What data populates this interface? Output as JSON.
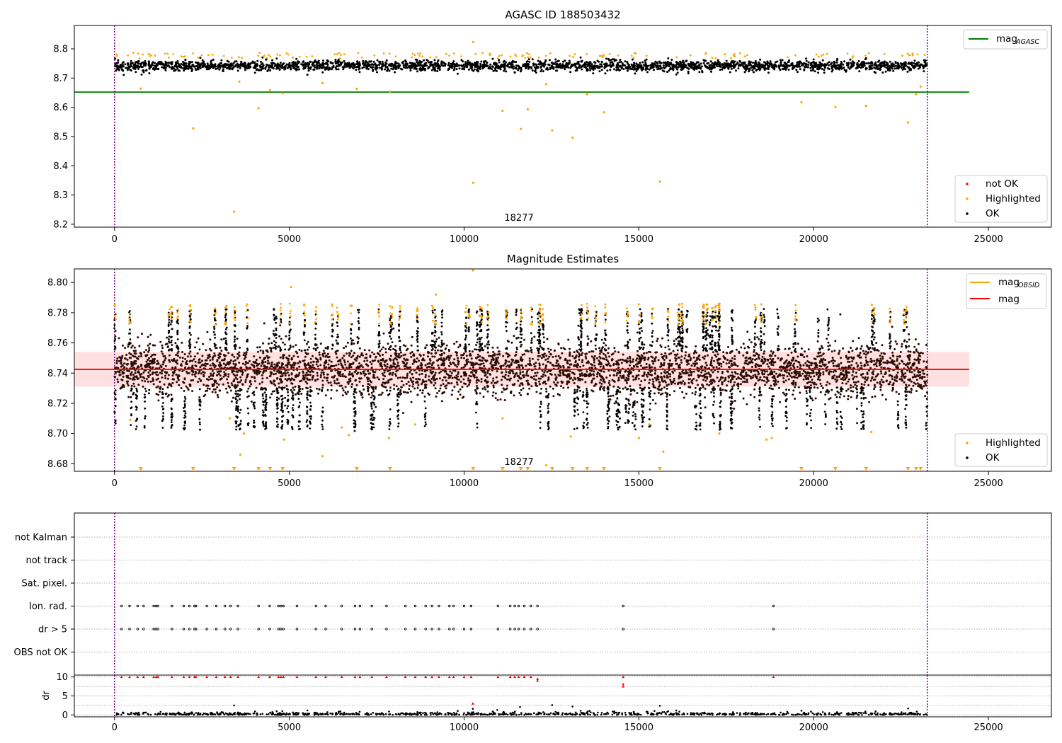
{
  "chart_data": [
    {
      "type": "scatter",
      "title": "AGASC ID 188503432",
      "xlim": [
        -1150,
        26800
      ],
      "ylim": [
        8.19,
        8.88
      ],
      "xticks": [
        "0",
        "5000",
        "10000",
        "15000",
        "20000",
        "25000"
      ],
      "yticks": [
        "8.2",
        "8.3",
        "8.4",
        "8.5",
        "8.6",
        "8.7",
        "8.8"
      ],
      "vlines": [
        0,
        23250
      ],
      "annotation": {
        "text": "18277",
        "x": 11700,
        "y": 8.205
      },
      "lines": [
        {
          "name": "mag",
          "name_sub": "AGASC",
          "y": 8.652,
          "x_range": [
            -1150,
            24450
          ],
          "color": "#008000"
        }
      ],
      "band": {
        "center": 8.742,
        "half_width": 0.012,
        "x_range": [
          0,
          23250
        ]
      },
      "legends": [
        {
          "position": "top-right",
          "entries": [
            {
              "label": "mag",
              "sub": "AGASC",
              "kind": "line",
              "color": "#008000"
            }
          ]
        },
        {
          "position": "bottom-right",
          "entries": [
            {
              "label": "not OK",
              "kind": "dot",
              "color": "#ff0000"
            },
            {
              "label": "Highlighted",
              "kind": "dot",
              "color": "#ffa500"
            },
            {
              "label": "OK",
              "kind": "dot",
              "color": "#000000"
            }
          ]
        }
      ],
      "series": [
        {
          "name": "Highlighted",
          "color": "#ffa500",
          "points": [
            [
              750,
              8.664
            ],
            [
              2250,
              8.528
            ],
            [
              3420,
              8.243
            ],
            [
              3570,
              8.688
            ],
            [
              4120,
              8.597
            ],
            [
              4450,
              8.659
            ],
            [
              4810,
              8.648
            ],
            [
              5950,
              8.683
            ],
            [
              6930,
              8.663
            ],
            [
              7880,
              8.654
            ],
            [
              10260,
              8.823
            ],
            [
              10260,
              8.342
            ],
            [
              11100,
              8.588
            ],
            [
              11620,
              8.526
            ],
            [
              11820,
              8.593
            ],
            [
              12350,
              8.679
            ],
            [
              12520,
              8.521
            ],
            [
              13100,
              8.496
            ],
            [
              13520,
              8.645
            ],
            [
              14000,
              8.583
            ],
            [
              15600,
              8.346
            ],
            [
              19650,
              8.617
            ],
            [
              20620,
              8.601
            ],
            [
              21500,
              8.605
            ],
            [
              22700,
              8.548
            ],
            [
              22930,
              8.645
            ],
            [
              23060,
              8.671
            ]
          ]
        }
      ]
    },
    {
      "type": "scatter",
      "title": "Magnitude Estimates",
      "xlim": [
        -1150,
        26800
      ],
      "ylim": [
        8.675,
        8.809
      ],
      "xticks": [
        "0",
        "5000",
        "10000",
        "15000",
        "20000",
        "25000"
      ],
      "yticks": [
        "8.68",
        "8.70",
        "8.72",
        "8.74",
        "8.76",
        "8.78",
        "8.80"
      ],
      "vlines": [
        0,
        23250
      ],
      "annotation": {
        "text": "18277",
        "x": 11700,
        "y": 8.6775
      },
      "lines": [
        {
          "name": "mag",
          "y": 8.7425,
          "x_range": [
            -1150,
            24450
          ],
          "color": "#ff0000"
        }
      ],
      "band": {
        "center": 8.7425,
        "half_width": 0.0115,
        "x_range": [
          -1150,
          24450
        ]
      },
      "legends": [
        {
          "position": "top-right",
          "entries": [
            {
              "label": "mag",
              "sub": "OBSID",
              "kind": "line",
              "color": "#ffa500"
            },
            {
              "label": "mag",
              "kind": "line",
              "color": "#ff0000"
            }
          ]
        },
        {
          "position": "bottom-right",
          "entries": [
            {
              "label": "Highlighted",
              "kind": "dot",
              "color": "#ffa500"
            },
            {
              "label": "OK",
              "kind": "dot",
              "color": "#000000"
            }
          ]
        }
      ],
      "series": [
        {
          "name": "Highlighted",
          "color": "#ffa500",
          "points": [
            [
              450,
              8.709
            ],
            [
              3300,
              8.71
            ],
            [
              3700,
              8.7
            ],
            [
              3600,
              8.686
            ],
            [
              4850,
              8.696
            ],
            [
              5050,
              8.797
            ],
            [
              5950,
              8.685
            ],
            [
              6500,
              8.704
            ],
            [
              6700,
              8.699
            ],
            [
              7850,
              8.697
            ],
            [
              8600,
              8.706
            ],
            [
              9200,
              8.792
            ],
            [
              10250,
              8.808
            ],
            [
              11100,
              8.71
            ],
            [
              12350,
              8.679
            ],
            [
              13050,
              8.698
            ],
            [
              15000,
              8.697
            ],
            [
              15300,
              8.706
            ],
            [
              15700,
              8.688
            ],
            [
              17300,
              8.7
            ],
            [
              18650,
              8.696
            ],
            [
              18800,
              8.697
            ],
            [
              21650,
              8.701
            ]
          ]
        }
      ],
      "clipped_markers_x": [
        750,
        2250,
        3420,
        4120,
        4450,
        4810,
        6930,
        7880,
        10260,
        11100,
        11620,
        11820,
        12520,
        13100,
        13520,
        14000,
        15600,
        19650,
        20620,
        21500,
        22700,
        22930,
        23060
      ]
    },
    {
      "type": "scatter",
      "title": "",
      "xlim": [
        -1150,
        26800
      ],
      "ylim": [
        -0.5,
        7.0
      ],
      "categories": [
        "not Kalman",
        "not track",
        "Sat. pixel.",
        "Ion. rad.",
        "dr > 5",
        "OBS not OK"
      ],
      "vlines": [
        0,
        23250
      ],
      "flag_rows": [
        {
          "name": "Ion. rad.",
          "x": [
            200,
            430,
            660,
            830,
            1120,
            1190,
            1240,
            1640,
            1980,
            2140,
            2290,
            2330,
            2640,
            2910,
            3160,
            3320,
            3530,
            4120,
            4440,
            4690,
            4760,
            4830,
            5220,
            5760,
            6040,
            6500,
            6880,
            7020,
            7360,
            7780,
            8320,
            8600,
            8900,
            9080,
            9280,
            9580,
            9700,
            10000,
            10200,
            10970,
            11320,
            11450,
            11560,
            11720,
            11910,
            12100,
            14550,
            18850
          ]
        },
        {
          "name": "dr > 5",
          "x": [
            200,
            430,
            660,
            830,
            1120,
            1190,
            1240,
            1640,
            1980,
            2140,
            2290,
            2330,
            2640,
            2910,
            3160,
            3320,
            3530,
            4120,
            4440,
            4690,
            4760,
            4830,
            5220,
            5760,
            6040,
            6500,
            6880,
            7020,
            7360,
            7780,
            8320,
            8600,
            8900,
            9080,
            9280,
            9580,
            9700,
            10000,
            10200,
            10970,
            11320,
            11450,
            11560,
            11720,
            11910,
            12100,
            14550,
            18850
          ]
        }
      ]
    },
    {
      "type": "scatter",
      "title": "",
      "ylabel": "dr",
      "xlim": [
        -1150,
        26800
      ],
      "ylim": [
        -0.5,
        10.5
      ],
      "xticks": [
        "0",
        "5000",
        "10000",
        "15000",
        "20000",
        "25000"
      ],
      "yticks": [
        "0",
        "5",
        "10"
      ],
      "vlines": [
        0,
        23250
      ],
      "series": [
        {
          "name": "not OK",
          "color": "#ff0000",
          "points": [
            [
              200,
              10
            ],
            [
              430,
              10
            ],
            [
              660,
              10
            ],
            [
              830,
              10
            ],
            [
              1120,
              10
            ],
            [
              1190,
              10
            ],
            [
              1240,
              10
            ],
            [
              1640,
              10
            ],
            [
              1980,
              10
            ],
            [
              2140,
              10
            ],
            [
              2290,
              10
            ],
            [
              2330,
              10
            ],
            [
              2640,
              10
            ],
            [
              2910,
              10
            ],
            [
              3160,
              10
            ],
            [
              3320,
              10
            ],
            [
              3530,
              10
            ],
            [
              4120,
              10
            ],
            [
              4440,
              10
            ],
            [
              4690,
              10
            ],
            [
              4760,
              10
            ],
            [
              4830,
              10
            ],
            [
              5220,
              10
            ],
            [
              5760,
              10
            ],
            [
              6040,
              10
            ],
            [
              6500,
              10
            ],
            [
              6880,
              10
            ],
            [
              7020,
              10
            ],
            [
              7360,
              10
            ],
            [
              7780,
              10
            ],
            [
              8320,
              10
            ],
            [
              8600,
              10
            ],
            [
              8900,
              10
            ],
            [
              9080,
              10
            ],
            [
              9280,
              10
            ],
            [
              9580,
              10
            ],
            [
              9700,
              10
            ],
            [
              10000,
              10
            ],
            [
              10200,
              10
            ],
            [
              10970,
              10
            ],
            [
              11320,
              10
            ],
            [
              11450,
              10
            ],
            [
              11560,
              10
            ],
            [
              11720,
              10
            ],
            [
              11910,
              10
            ],
            [
              12100,
              9.5
            ],
            [
              12100,
              9.0
            ],
            [
              14550,
              10
            ],
            [
              14550,
              8.1
            ],
            [
              14550,
              7.5
            ],
            [
              18850,
              10
            ],
            [
              10250,
              3.0
            ]
          ]
        },
        {
          "name": "OK",
          "color": "#000000",
          "points": [
            [
              3420,
              2.5
            ],
            [
              10250,
              1.6
            ],
            [
              10950,
              1.3
            ],
            [
              11600,
              2.1
            ],
            [
              12520,
              2.6
            ],
            [
              13100,
              2.2
            ],
            [
              15600,
              2.4
            ],
            [
              19650,
              1.1
            ],
            [
              22700,
              1.7
            ],
            [
              22950,
              0.9
            ],
            [
              4800,
              1.0
            ],
            [
              7850,
              0.9
            ]
          ]
        }
      ]
    }
  ]
}
